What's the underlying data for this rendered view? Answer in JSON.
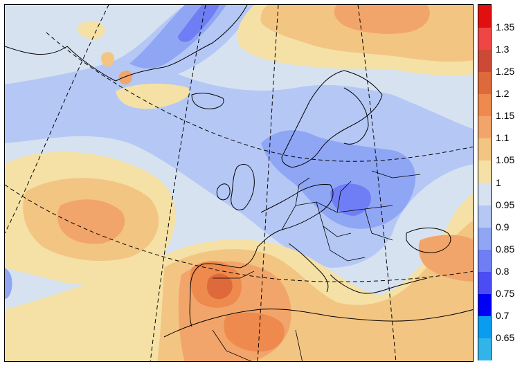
{
  "colorbar": {
    "bins": [
      {
        "color": "#32b4e8",
        "label": "0.65"
      },
      {
        "color": "#0a9cf0",
        "label": "0.7"
      },
      {
        "color": "#0000f5",
        "label": "0.75"
      },
      {
        "color": "#4c4cf5",
        "label": "0.8"
      },
      {
        "color": "#6f7ef5",
        "label": "0.85"
      },
      {
        "color": "#8fa6f5",
        "label": "0.9"
      },
      {
        "color": "#b5c8f5",
        "label": "0.95"
      },
      {
        "color": "#d7e2f0",
        "label": "1"
      },
      {
        "color": "#f5e1a5",
        "label": "1.05"
      },
      {
        "color": "#f3c583",
        "label": "1.1"
      },
      {
        "color": "#f2a56a",
        "label": "1.15"
      },
      {
        "color": "#ee8a4d",
        "label": "1.2"
      },
      {
        "color": "#de6a3b",
        "label": "1.25"
      },
      {
        "color": "#cc4a35",
        "label": "1.3"
      },
      {
        "color": "#f04545",
        "label": "1.35"
      },
      {
        "color": "#e01010",
        "label": ""
      }
    ]
  },
  "map": {
    "background_value": "1",
    "description_colors": {
      "low": "#8fa6f5",
      "high": "#ee8a4d"
    }
  }
}
